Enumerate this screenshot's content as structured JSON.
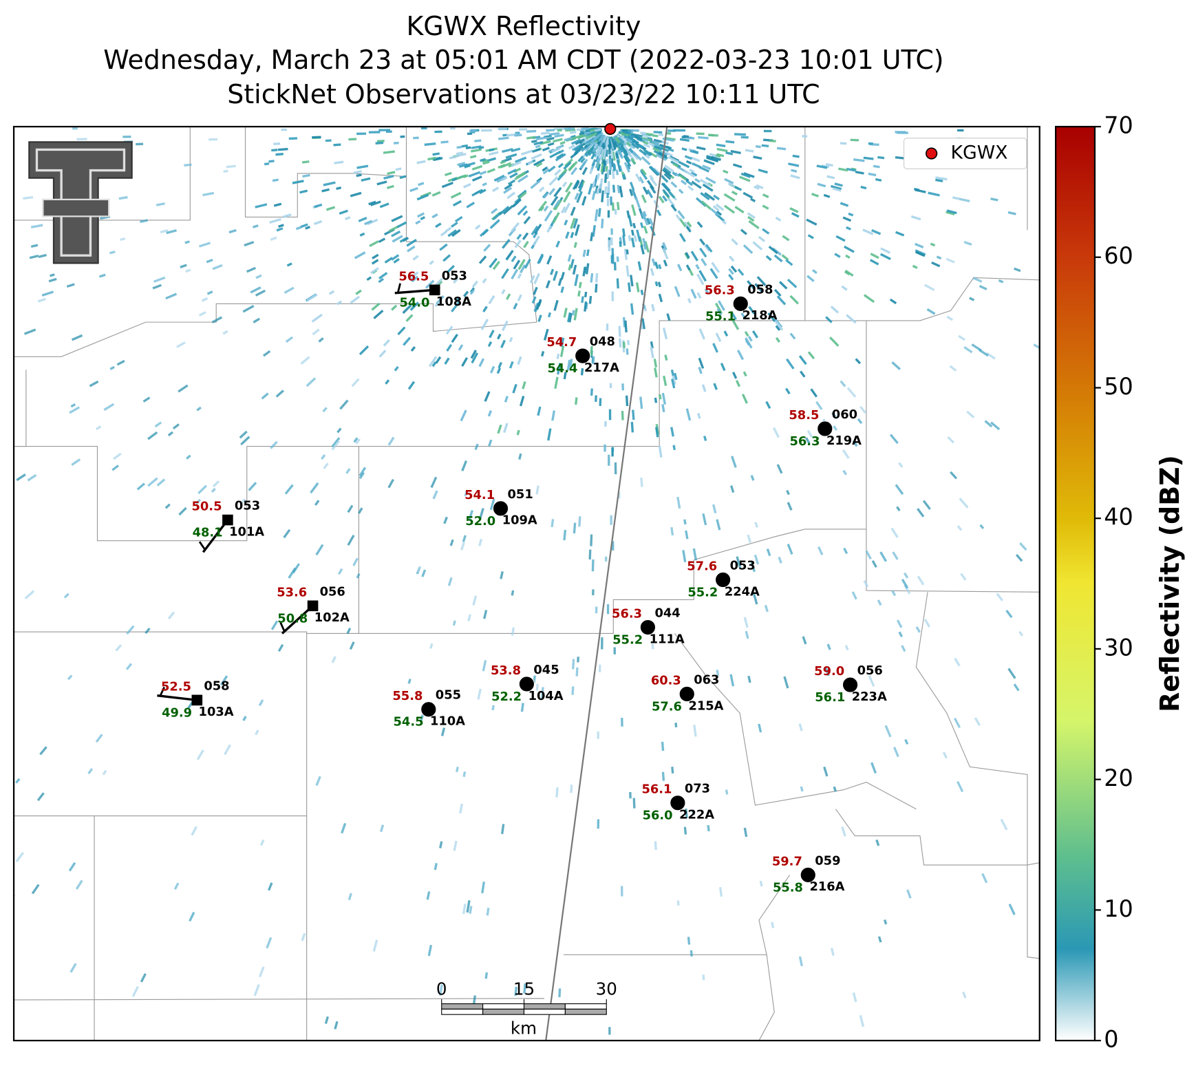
{
  "title": [
    "KGWX Reflectivity",
    "Wednesday, March 23 at 05:01 AM CDT (2022-03-23 10:01 UTC)",
    "StickNet Observations at 03/23/22 10:11 UTC"
  ],
  "legend": "KGWX",
  "colorbar": {
    "label": "Reflectivity (dBZ)",
    "lim": [
      0,
      70
    ],
    "ticks": [
      0,
      10,
      20,
      30,
      40,
      50,
      60,
      70
    ]
  },
  "scale_bar": {
    "ticks": [
      0,
      15,
      30
    ],
    "unit": "km"
  },
  "stations": [
    {
      "id": "108A",
      "temperature": "56.5",
      "dewpoint": "54.0",
      "pressure": "053"
    },
    {
      "id": "218A",
      "temperature": "56.3",
      "dewpoint": "55.1",
      "pressure": "058"
    },
    {
      "id": "217A",
      "temperature": "54.7",
      "dewpoint": "54.4",
      "pressure": "048"
    },
    {
      "id": "219A",
      "temperature": "58.5",
      "dewpoint": "56.3",
      "pressure": "060"
    },
    {
      "id": "109A",
      "temperature": "54.1",
      "dewpoint": "52.0",
      "pressure": "051"
    },
    {
      "id": "101A",
      "temperature": "50.5",
      "dewpoint": "48.1",
      "pressure": "053"
    },
    {
      "id": "224A",
      "temperature": "57.6",
      "dewpoint": "55.2",
      "pressure": "053"
    },
    {
      "id": "102A",
      "temperature": "53.6",
      "dewpoint": "50.8",
      "pressure": "056"
    },
    {
      "id": "111A",
      "temperature": "56.3",
      "dewpoint": "55.2",
      "pressure": "044"
    },
    {
      "id": "104A",
      "temperature": "53.8",
      "dewpoint": "52.2",
      "pressure": "045"
    },
    {
      "id": "215A",
      "temperature": "60.3",
      "dewpoint": "57.6",
      "pressure": "063"
    },
    {
      "id": "223A",
      "temperature": "59.0",
      "dewpoint": "56.1",
      "pressure": "056"
    },
    {
      "id": "103A",
      "temperature": "52.5",
      "dewpoint": "49.9",
      "pressure": "058"
    },
    {
      "id": "110A",
      "temperature": "55.8",
      "dewpoint": "54.5",
      "pressure": "055"
    },
    {
      "id": "222A",
      "temperature": "56.1",
      "dewpoint": "56.0",
      "pressure": "073"
    },
    {
      "id": "216A",
      "temperature": "59.7",
      "dewpoint": "55.8",
      "pressure": "059"
    }
  ]
}
